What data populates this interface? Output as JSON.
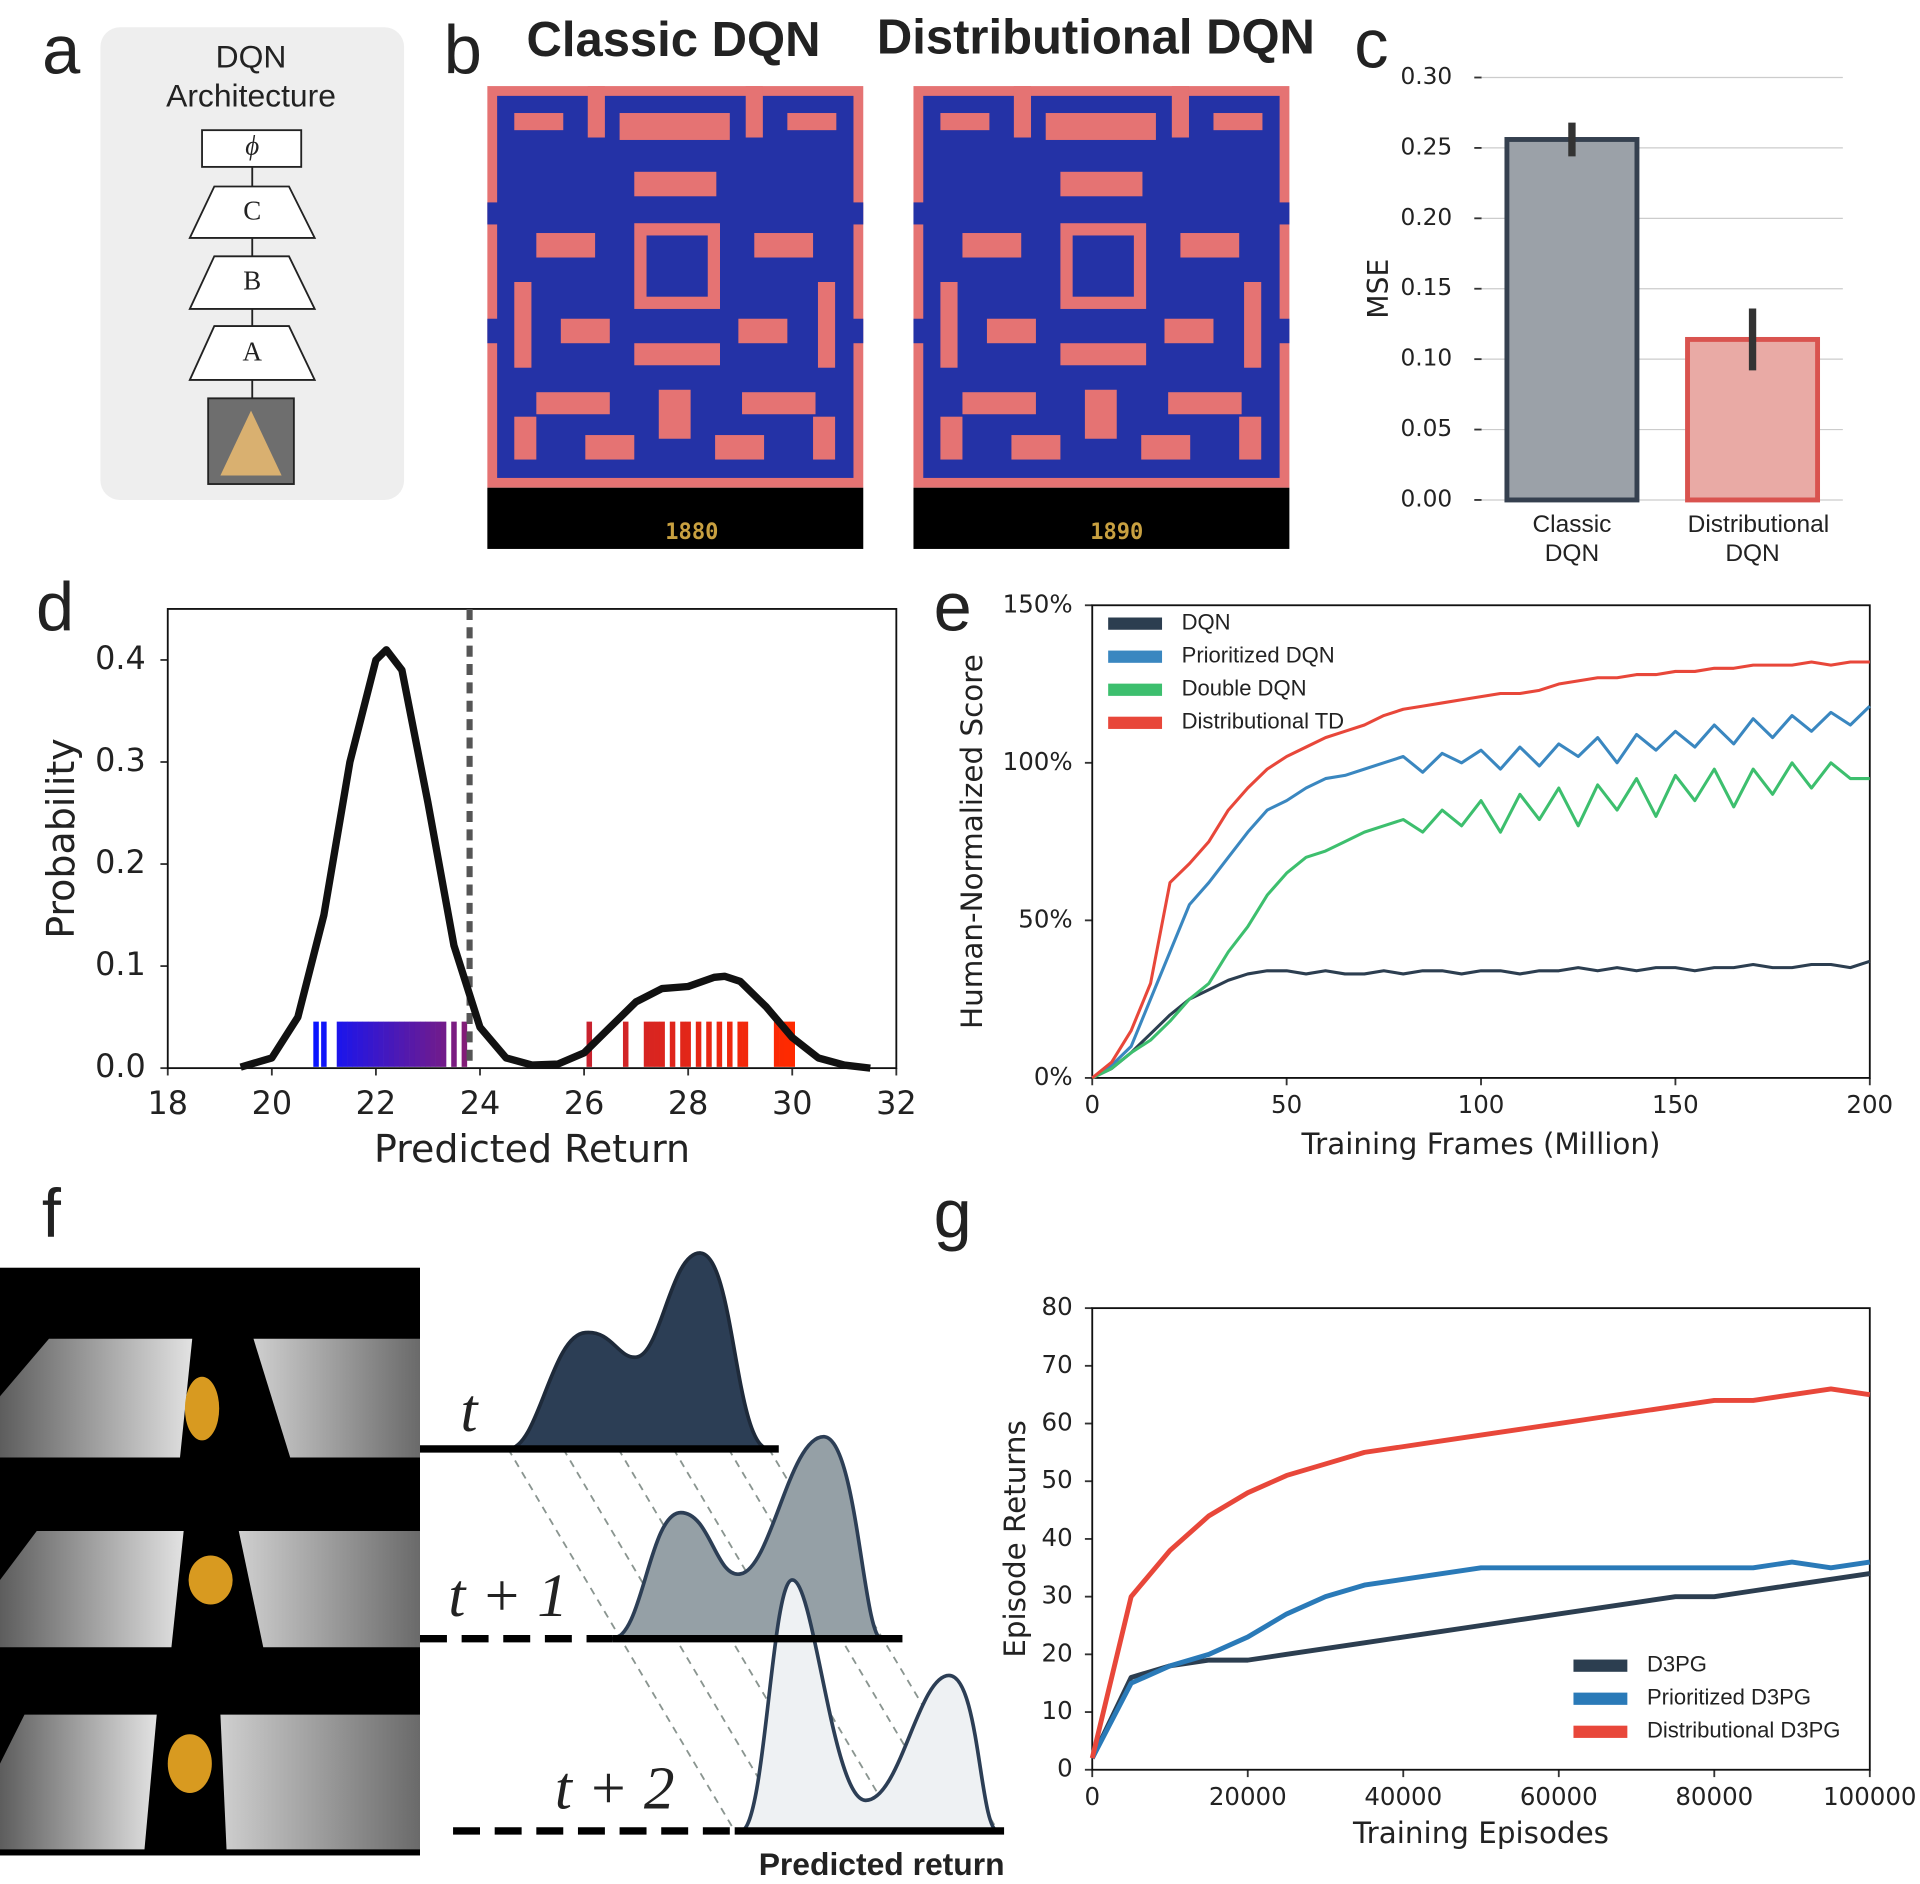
{
  "panel_labels": [
    "a",
    "b",
    "c",
    "d",
    "e",
    "f",
    "g"
  ],
  "architecture": {
    "title_line1": "DQN",
    "title_line2": "Architecture",
    "layers": [
      "ϕ",
      "C",
      "B",
      "A"
    ]
  },
  "screens": {
    "left_title": "Classic DQN",
    "right_title": "Distributional DQN",
    "left_score": "1880",
    "right_score": "1890"
  },
  "distribution_diagram": {
    "time_labels": [
      "t",
      "t + 1",
      "t + 2"
    ],
    "axis_label": "Predicted return"
  },
  "chart_data": [
    {
      "type": "bar",
      "ylabel": "MSE",
      "categories": [
        "Classic DQN",
        "Distributional DQN"
      ],
      "values": [
        0.256,
        0.114
      ],
      "errors": [
        0.012,
        0.022
      ],
      "colors": [
        "#9ba1a8",
        "#e9aaa5"
      ],
      "edge_colors": [
        "#35404f",
        "#d9534f"
      ],
      "error_color": "#333333",
      "ylim": [
        0,
        0.3
      ],
      "yticks": [
        {
          "value": 0,
          "label": "0.00"
        },
        {
          "value": 0.05,
          "label": "0.05"
        },
        {
          "value": 0.1,
          "label": "0.10"
        },
        {
          "value": 0.15,
          "label": "0.15"
        },
        {
          "value": 0.2,
          "label": "0.20"
        },
        {
          "value": 0.25,
          "label": "0.25"
        },
        {
          "value": 0.3,
          "label": "0.30"
        }
      ],
      "grid": true
    },
    {
      "type": "density",
      "xlabel": "Predicted Return",
      "ylabel": "Probability",
      "color": "#111111",
      "x": [
        19.4,
        20,
        20.5,
        21,
        21.5,
        22,
        22.2,
        22.5,
        23,
        23.5,
        24,
        24.5,
        25,
        25.5,
        26,
        26.5,
        27,
        27.5,
        28,
        28.5,
        28.7,
        29,
        29.5,
        30,
        30.5,
        31,
        31.5
      ],
      "values": [
        0.001,
        0.01,
        0.05,
        0.15,
        0.3,
        0.4,
        0.41,
        0.39,
        0.26,
        0.12,
        0.04,
        0.01,
        0.003,
        0.004,
        0.015,
        0.04,
        0.065,
        0.078,
        0.08,
        0.089,
        0.09,
        0.085,
        0.06,
        0.03,
        0.01,
        0.003,
        0
      ],
      "rug": [
        20.85,
        21.0,
        21.3,
        21.4,
        21.5,
        21.6,
        21.7,
        21.8,
        21.9,
        22.0,
        22.1,
        22.2,
        22.3,
        22.4,
        22.5,
        22.6,
        22.7,
        22.8,
        22.9,
        23.0,
        23.1,
        23.2,
        23.3,
        23.5,
        23.7,
        26.1,
        26.8,
        27.2,
        27.3,
        27.4,
        27.5,
        27.7,
        27.9,
        28.0,
        28.2,
        28.4,
        28.6,
        28.8,
        29.0,
        29.1,
        29.7,
        29.8,
        29.9,
        30.0
      ],
      "rug_colors": [
        "#0a14ff",
        "#b8203c",
        "#ff2a00"
      ],
      "vline": 23.8,
      "vline_color": "#555555",
      "xlim": [
        18,
        32
      ],
      "xticks": [
        18,
        20,
        22,
        24,
        26,
        28,
        30,
        32
      ],
      "ylim": [
        0,
        0.45
      ],
      "yticks": [
        {
          "value": 0,
          "label": "0.0"
        },
        {
          "value": 0.1,
          "label": "0.1"
        },
        {
          "value": 0.2,
          "label": "0.2"
        },
        {
          "value": 0.3,
          "label": "0.3"
        },
        {
          "value": 0.4,
          "label": "0.4"
        }
      ],
      "grid": false
    },
    {
      "type": "line",
      "xlabel": "Training Frames (Million)",
      "ylabel": "Human-Normalized Score",
      "legend": "upper left",
      "x": [
        0,
        5,
        10,
        15,
        20,
        25,
        30,
        35,
        40,
        45,
        50,
        55,
        60,
        65,
        70,
        75,
        80,
        85,
        90,
        95,
        100,
        105,
        110,
        115,
        120,
        125,
        130,
        135,
        140,
        145,
        150,
        155,
        160,
        165,
        170,
        175,
        180,
        185,
        190,
        195,
        200
      ],
      "series": [
        {
          "name": "DQN",
          "color": "#2c3e50",
          "values": [
            0,
            3,
            8,
            14,
            20,
            25,
            28,
            31,
            33,
            34,
            34,
            33,
            34,
            33,
            33,
            34,
            33,
            34,
            34,
            33,
            34,
            34,
            33,
            34,
            34,
            35,
            34,
            35,
            34,
            35,
            35,
            34,
            35,
            35,
            36,
            35,
            35,
            36,
            36,
            35,
            37
          ]
        },
        {
          "name": "Prioritized DQN",
          "color": "#3a87c0",
          "values": [
            0,
            4,
            10,
            25,
            40,
            55,
            62,
            70,
            78,
            85,
            88,
            92,
            95,
            96,
            98,
            100,
            102,
            97,
            103,
            100,
            104,
            98,
            105,
            99,
            106,
            102,
            108,
            100,
            109,
            104,
            110,
            105,
            112,
            106,
            114,
            108,
            115,
            110,
            116,
            112,
            118
          ]
        },
        {
          "name": "Double DQN",
          "color": "#3dbf6e",
          "values": [
            0,
            3,
            8,
            12,
            18,
            25,
            30,
            40,
            48,
            58,
            65,
            70,
            72,
            75,
            78,
            80,
            82,
            78,
            85,
            80,
            88,
            78,
            90,
            82,
            92,
            80,
            93,
            85,
            95,
            83,
            96,
            88,
            98,
            86,
            98,
            90,
            100,
            92,
            100,
            95,
            95
          ]
        },
        {
          "name": "Distributional TD",
          "color": "#e8473a",
          "values": [
            0,
            5,
            15,
            30,
            62,
            68,
            75,
            85,
            92,
            98,
            102,
            105,
            108,
            110,
            112,
            115,
            117,
            118,
            119,
            120,
            121,
            122,
            122,
            123,
            125,
            126,
            127,
            127,
            128,
            128,
            129,
            129,
            130,
            130,
            131,
            131,
            131,
            132,
            131,
            132,
            132
          ]
        }
      ],
      "xlim": [
        0,
        200
      ],
      "xticks": [
        0,
        50,
        100,
        150,
        200
      ],
      "ylim": [
        0,
        150
      ],
      "yticks": [
        {
          "value": 0,
          "label": "0%"
        },
        {
          "value": 50,
          "label": "50%"
        },
        {
          "value": 100,
          "label": "100%"
        },
        {
          "value": 150,
          "label": "150%"
        }
      ],
      "grid": false
    },
    {
      "type": "line",
      "xlabel": "Training Episodes",
      "ylabel": "Episode Returns",
      "legend": "lower right",
      "x": [
        0,
        5000,
        10000,
        15000,
        20000,
        25000,
        30000,
        35000,
        40000,
        45000,
        50000,
        55000,
        60000,
        65000,
        70000,
        75000,
        80000,
        85000,
        90000,
        95000,
        100000
      ],
      "series": [
        {
          "name": "D3PG",
          "color": "#2c3e50",
          "values": [
            2,
            16,
            18,
            19,
            19,
            20,
            21,
            22,
            23,
            24,
            25,
            26,
            27,
            28,
            29,
            30,
            30,
            31,
            32,
            33,
            34
          ]
        },
        {
          "name": "Prioritized D3PG",
          "color": "#2a7ab8",
          "values": [
            2,
            15,
            18,
            20,
            23,
            27,
            30,
            32,
            33,
            34,
            35,
            35,
            35,
            35,
            35,
            35,
            35,
            35,
            36,
            35,
            36
          ]
        },
        {
          "name": "Distributional D3PG",
          "color": "#e8473a",
          "values": [
            2,
            30,
            38,
            44,
            48,
            51,
            53,
            55,
            56,
            57,
            58,
            59,
            60,
            61,
            62,
            63,
            64,
            64,
            65,
            66,
            65
          ]
        }
      ],
      "xlim": [
        0,
        100000
      ],
      "xticks": [
        0,
        20000,
        40000,
        60000,
        80000,
        100000
      ],
      "ylim": [
        0,
        80
      ],
      "yticks": [
        0,
        10,
        20,
        30,
        40,
        50,
        60,
        70,
        80
      ],
      "grid": false
    }
  ]
}
